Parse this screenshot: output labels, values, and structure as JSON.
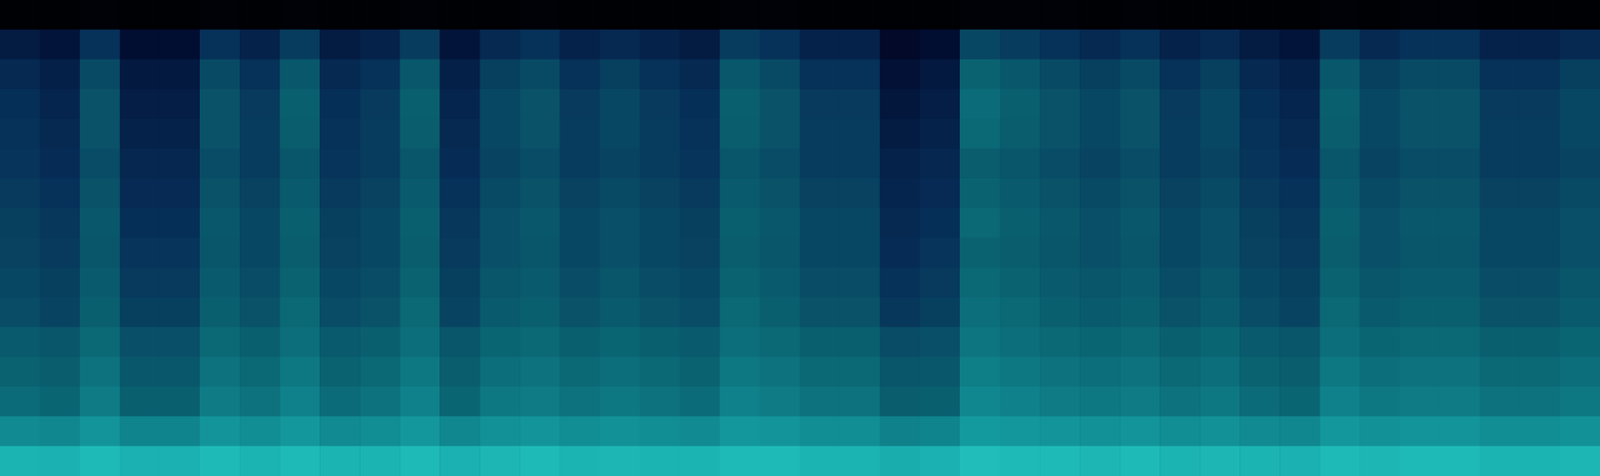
{
  "chart_data": {
    "type": "heatmap",
    "tick_labels": false,
    "grid": false,
    "zlim": [
      0,
      100
    ],
    "cells": [
      [
        2,
        2,
        3,
        2,
        2,
        3,
        2,
        3,
        2,
        2,
        3,
        2,
        2,
        3,
        2,
        2,
        2,
        2,
        3,
        3,
        2,
        2,
        2,
        2,
        3,
        3,
        3,
        2,
        3,
        2,
        2,
        2,
        2,
        3,
        2,
        3,
        3,
        2,
        2,
        2
      ],
      [
        30,
        26,
        42,
        22,
        22,
        42,
        34,
        46,
        30,
        34,
        46,
        26,
        38,
        42,
        34,
        38,
        34,
        30,
        46,
        42,
        34,
        34,
        18,
        22,
        50,
        46,
        42,
        38,
        42,
        34,
        38,
        30,
        26,
        46,
        38,
        42,
        42,
        34,
        34,
        38
      ],
      [
        38,
        33,
        51,
        29,
        29,
        51,
        42,
        56,
        38,
        42,
        56,
        33,
        47,
        51,
        42,
        47,
        42,
        38,
        56,
        51,
        42,
        42,
        24,
        29,
        60,
        56,
        51,
        47,
        51,
        42,
        47,
        38,
        33,
        56,
        47,
        51,
        51,
        42,
        42,
        47
      ],
      [
        41,
        36,
        54,
        32,
        32,
        54,
        45,
        59,
        41,
        45,
        59,
        36,
        50,
        54,
        45,
        50,
        45,
        41,
        59,
        54,
        45,
        45,
        27,
        32,
        63,
        59,
        54,
        50,
        54,
        45,
        50,
        41,
        36,
        59,
        50,
        54,
        54,
        45,
        45,
        50
      ],
      [
        42,
        38,
        54,
        34,
        34,
        54,
        46,
        58,
        42,
        46,
        58,
        38,
        50,
        54,
        46,
        50,
        46,
        42,
        58,
        54,
        46,
        46,
        30,
        34,
        62,
        58,
        54,
        50,
        54,
        46,
        50,
        42,
        38,
        58,
        50,
        54,
        54,
        46,
        46,
        50
      ],
      [
        43,
        40,
        52,
        37,
        37,
        52,
        46,
        55,
        43,
        46,
        55,
        40,
        49,
        52,
        46,
        49,
        46,
        43,
        55,
        52,
        46,
        46,
        34,
        37,
        58,
        55,
        52,
        49,
        52,
        46,
        49,
        43,
        40,
        55,
        49,
        52,
        52,
        46,
        46,
        49
      ],
      [
        45,
        42,
        54,
        39,
        39,
        54,
        48,
        57,
        45,
        48,
        57,
        42,
        51,
        54,
        48,
        51,
        48,
        45,
        57,
        54,
        48,
        48,
        36,
        39,
        60,
        57,
        54,
        51,
        54,
        48,
        51,
        45,
        42,
        57,
        51,
        54,
        54,
        48,
        48,
        51
      ],
      [
        47,
        44,
        56,
        41,
        41,
        56,
        50,
        59,
        47,
        50,
        59,
        44,
        53,
        56,
        50,
        53,
        50,
        47,
        59,
        56,
        50,
        50,
        38,
        41,
        62,
        59,
        56,
        53,
        56,
        50,
        53,
        47,
        44,
        59,
        53,
        56,
        56,
        50,
        50,
        53
      ],
      [
        48,
        45,
        55,
        43,
        43,
        55,
        50,
        58,
        48,
        50,
        58,
        45,
        53,
        55,
        50,
        53,
        50,
        48,
        58,
        55,
        50,
        50,
        40,
        43,
        60,
        58,
        55,
        53,
        55,
        50,
        53,
        48,
        45,
        58,
        53,
        55,
        55,
        50,
        50,
        53
      ],
      [
        50,
        47,
        57,
        45,
        45,
        57,
        52,
        60,
        50,
        52,
        60,
        47,
        55,
        57,
        52,
        55,
        52,
        50,
        60,
        57,
        52,
        52,
        42,
        45,
        62,
        60,
        57,
        55,
        57,
        52,
        55,
        50,
        47,
        60,
        55,
        57,
        57,
        52,
        52,
        55
      ],
      [
        52,
        49,
        59,
        47,
        47,
        59,
        54,
        62,
        52,
        54,
        62,
        49,
        57,
        59,
        54,
        57,
        54,
        52,
        62,
        59,
        54,
        54,
        44,
        47,
        64,
        62,
        59,
        57,
        59,
        54,
        57,
        52,
        49,
        62,
        57,
        59,
        59,
        54,
        54,
        57
      ],
      [
        57,
        55,
        62,
        53,
        53,
        62,
        59,
        64,
        57,
        59,
        64,
        55,
        61,
        62,
        59,
        61,
        59,
        57,
        64,
        62,
        59,
        59,
        52,
        53,
        66,
        64,
        62,
        61,
        62,
        59,
        61,
        57,
        55,
        64,
        61,
        62,
        62,
        59,
        59,
        61
      ],
      [
        60,
        58,
        65,
        56,
        56,
        65,
        62,
        67,
        60,
        62,
        67,
        58,
        64,
        65,
        62,
        64,
        62,
        60,
        67,
        65,
        62,
        62,
        55,
        56,
        69,
        67,
        65,
        64,
        65,
        62,
        64,
        60,
        58,
        67,
        64,
        65,
        65,
        62,
        62,
        64
      ],
      [
        63,
        61,
        68,
        59,
        59,
        68,
        65,
        70,
        63,
        65,
        70,
        61,
        67,
        68,
        65,
        67,
        65,
        63,
        70,
        68,
        65,
        65,
        58,
        59,
        72,
        70,
        68,
        67,
        68,
        65,
        67,
        63,
        61,
        70,
        67,
        68,
        68,
        65,
        65,
        67
      ],
      [
        73,
        72,
        76,
        71,
        71,
        76,
        74,
        77,
        73,
        74,
        77,
        72,
        75,
        76,
        74,
        75,
        74,
        73,
        77,
        76,
        74,
        74,
        70,
        71,
        78,
        77,
        76,
        75,
        76,
        74,
        75,
        73,
        72,
        77,
        75,
        76,
        76,
        74,
        74,
        75
      ],
      [
        86,
        85,
        88,
        85,
        85,
        88,
        86,
        88,
        86,
        86,
        88,
        85,
        87,
        88,
        86,
        87,
        86,
        86,
        88,
        88,
        86,
        86,
        84,
        85,
        89,
        88,
        88,
        87,
        88,
        86,
        87,
        86,
        85,
        88,
        87,
        88,
        88,
        86,
        86,
        87
      ]
    ]
  }
}
